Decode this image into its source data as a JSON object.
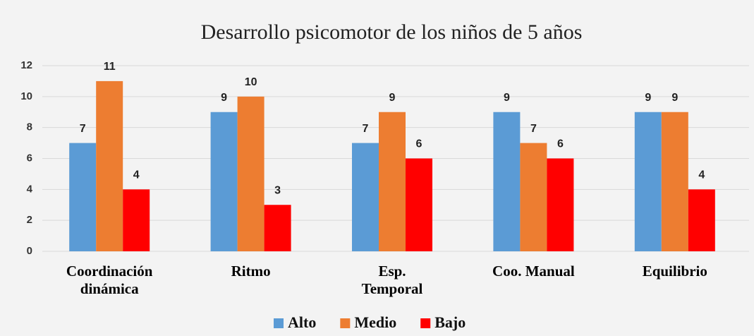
{
  "chart_data": {
    "type": "bar",
    "title": "Desarrollo psicomotor de los niños de 5 años",
    "categories": [
      "Coordinación\ndinámica",
      "Ritmo",
      "Esp.\nTemporal",
      "Coo. Manual",
      "Equilibrio"
    ],
    "series": [
      {
        "name": "Alto",
        "color": "#5b9bd5",
        "values": [
          7,
          9,
          7,
          9,
          9
        ]
      },
      {
        "name": "Medio",
        "color": "#ed7d31",
        "values": [
          11,
          10,
          9,
          7,
          9
        ]
      },
      {
        "name": "Bajo",
        "color": "#ff0000",
        "values": [
          4,
          3,
          6,
          6,
          4
        ]
      }
    ],
    "ylim": [
      0,
      12
    ],
    "yticks": [
      0,
      2,
      4,
      6,
      8,
      10,
      12
    ],
    "grid": true,
    "legend": "bottom"
  }
}
